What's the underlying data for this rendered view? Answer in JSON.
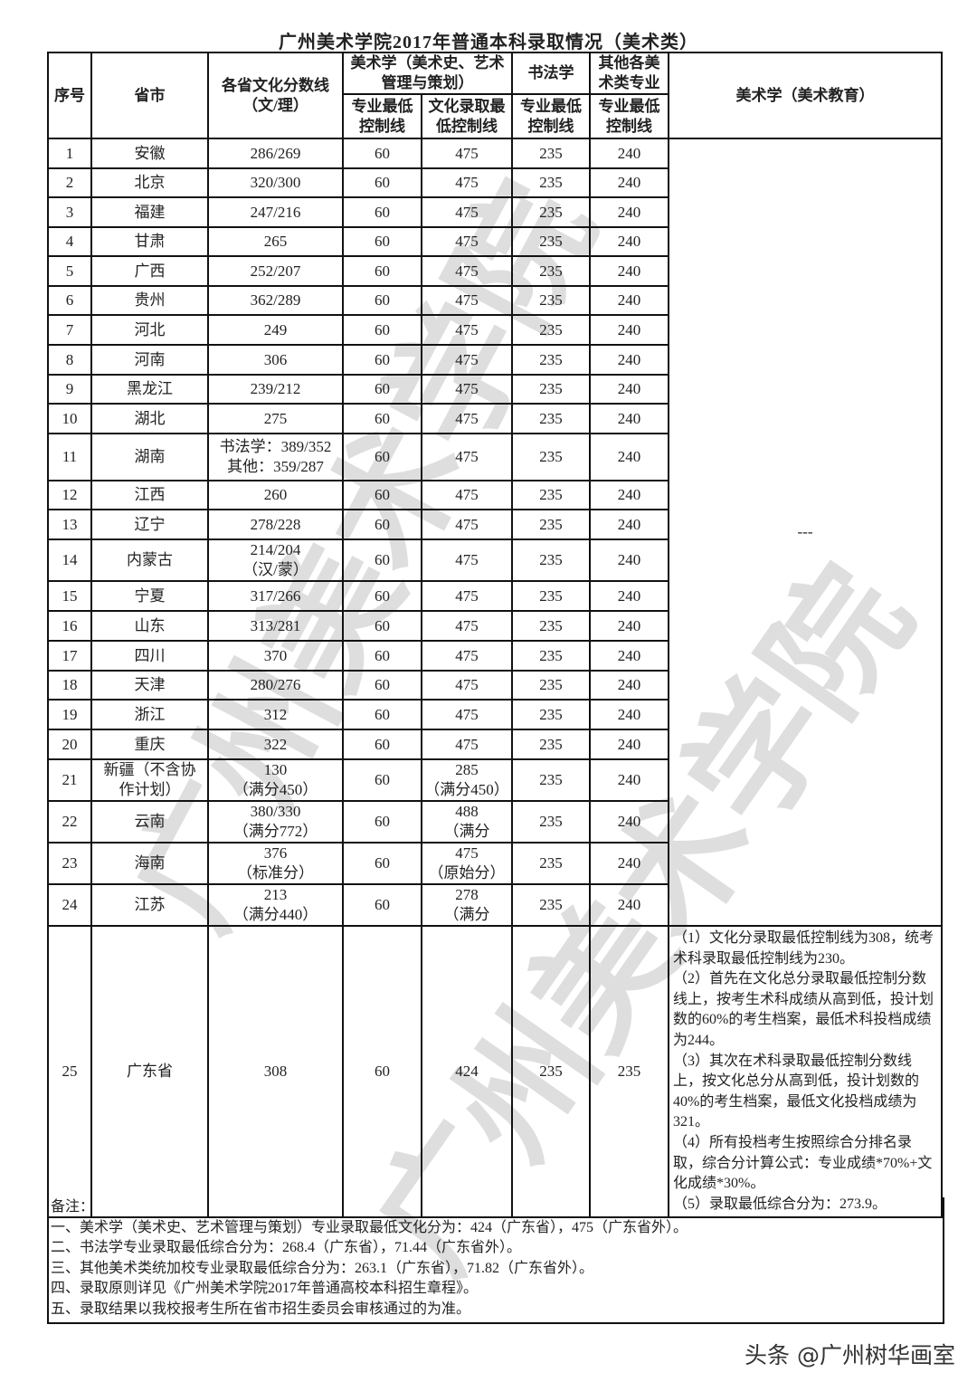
{
  "title": "广州美术学院2017年普通本科录取情况（美术类）",
  "header": {
    "no": "序号",
    "province": "省市",
    "culture": "各省文化分数线\n（文/理）",
    "meishu_group": "美术学（美术史、艺术管理与策划）",
    "meishu_zy": "专业最低\n控制线",
    "meishu_wh": "文化录取最\n低控制线",
    "shufa_group": "书法学",
    "shufa_zy": "专业最低\n控制线",
    "other_group": "其他各美\n术类专业",
    "other_zy": "专业最低\n控制线",
    "edu": "美术学（美术教育）"
  },
  "rows": [
    {
      "no": "1",
      "province": "安徽",
      "culture": "286/269",
      "ms_zy": "60",
      "ms_wh": "475",
      "sf": "235",
      "qt": "240"
    },
    {
      "no": "2",
      "province": "北京",
      "culture": "320/300",
      "ms_zy": "60",
      "ms_wh": "475",
      "sf": "235",
      "qt": "240"
    },
    {
      "no": "3",
      "province": "福建",
      "culture": "247/216",
      "ms_zy": "60",
      "ms_wh": "475",
      "sf": "235",
      "qt": "240"
    },
    {
      "no": "4",
      "province": "甘肃",
      "culture": "265",
      "ms_zy": "60",
      "ms_wh": "475",
      "sf": "235",
      "qt": "240"
    },
    {
      "no": "5",
      "province": "广西",
      "culture": "252/207",
      "ms_zy": "60",
      "ms_wh": "475",
      "sf": "235",
      "qt": "240"
    },
    {
      "no": "6",
      "province": "贵州",
      "culture": "362/289",
      "ms_zy": "60",
      "ms_wh": "475",
      "sf": "235",
      "qt": "240"
    },
    {
      "no": "7",
      "province": "河北",
      "culture": "249",
      "ms_zy": "60",
      "ms_wh": "475",
      "sf": "235",
      "qt": "240"
    },
    {
      "no": "8",
      "province": "河南",
      "culture": "306",
      "ms_zy": "60",
      "ms_wh": "475",
      "sf": "235",
      "qt": "240"
    },
    {
      "no": "9",
      "province": "黑龙江",
      "culture": "239/212",
      "ms_zy": "60",
      "ms_wh": "475",
      "sf": "235",
      "qt": "240"
    },
    {
      "no": "10",
      "province": "湖北",
      "culture": "275",
      "ms_zy": "60",
      "ms_wh": "475",
      "sf": "235",
      "qt": "240"
    },
    {
      "no": "11",
      "province": "湖南",
      "culture": "书法学：389/352\n其他：359/287",
      "ms_zy": "60",
      "ms_wh": "475",
      "sf": "235",
      "qt": "240"
    },
    {
      "no": "12",
      "province": "江西",
      "culture": "260",
      "ms_zy": "60",
      "ms_wh": "475",
      "sf": "235",
      "qt": "240"
    },
    {
      "no": "13",
      "province": "辽宁",
      "culture": "278/228",
      "ms_zy": "60",
      "ms_wh": "475",
      "sf": "235",
      "qt": "240"
    },
    {
      "no": "14",
      "province": "内蒙古",
      "culture": "214/204\n（汉/蒙）",
      "ms_zy": "60",
      "ms_wh": "475",
      "sf": "235",
      "qt": "240"
    },
    {
      "no": "15",
      "province": "宁夏",
      "culture": "317/266",
      "ms_zy": "60",
      "ms_wh": "475",
      "sf": "235",
      "qt": "240"
    },
    {
      "no": "16",
      "province": "山东",
      "culture": "313/281",
      "ms_zy": "60",
      "ms_wh": "475",
      "sf": "235",
      "qt": "240"
    },
    {
      "no": "17",
      "province": "四川",
      "culture": "370",
      "ms_zy": "60",
      "ms_wh": "475",
      "sf": "235",
      "qt": "240"
    },
    {
      "no": "18",
      "province": "天津",
      "culture": "280/276",
      "ms_zy": "60",
      "ms_wh": "475",
      "sf": "235",
      "qt": "240"
    },
    {
      "no": "19",
      "province": "浙江",
      "culture": "312",
      "ms_zy": "60",
      "ms_wh": "475",
      "sf": "235",
      "qt": "240"
    },
    {
      "no": "20",
      "province": "重庆",
      "culture": "322",
      "ms_zy": "60",
      "ms_wh": "475",
      "sf": "235",
      "qt": "240"
    },
    {
      "no": "21",
      "province": "新疆（不含协\n作计划）",
      "culture": "130\n（满分450）",
      "ms_zy": "60",
      "ms_wh": "285\n（满分450）",
      "sf": "235",
      "qt": "240"
    },
    {
      "no": "22",
      "province": "云南",
      "culture": "380/330\n（满分772）",
      "ms_zy": "60",
      "ms_wh": "488\n（满分",
      "sf": "235",
      "qt": "240"
    },
    {
      "no": "23",
      "province": "海南",
      "culture": "376\n（标准分）",
      "ms_zy": "60",
      "ms_wh": "475\n（原始分）",
      "sf": "235",
      "qt": "240"
    },
    {
      "no": "24",
      "province": "江苏",
      "culture": "213\n（满分440）",
      "ms_zy": "60",
      "ms_wh": "278\n（满分",
      "sf": "235",
      "qt": "240"
    },
    {
      "no": "25",
      "province": "广东省",
      "culture": "308",
      "ms_zy": "60",
      "ms_wh": "424",
      "sf": "235",
      "qt": "235"
    }
  ],
  "edu_placeholder": "---",
  "guangdong_edu_note": "（1）文化分录取最低控制线为308，统考术科录取最低控制线为230。\n（2）首先在文化总分录取最低控制分数线上，按考生术科成绩从高到低，投计划数的60%的考生档案，最低术科投档成绩为244。\n（3）其次在术科录取最低控制分数线上，按文化总分从高到低，投计划数的40%的考生档案，最低文化投档成绩为321。\n（4）所有投档考生按照综合分排名录取，综合分计算公式：专业成绩*70%+文化成绩*30%。\n（5）录取最低综合分为：273.9。",
  "notes": {
    "label": "备注：",
    "items": [
      "一、美术学（美术史、艺术管理与策划）专业录取最低文化分为：424（广东省），475（广东省外）。",
      "二、书法学专业录取最低综合分为：268.4（广东省），71.44（广东省外）。",
      "三、其他美术类统加校专业录取最低综合分为：263.1（广东省），71.82（广东省外）。",
      "四、录取原则详见《广州美术学院2017年普通高校本科招生章程》。",
      "五、录取结果以我校报考生所在省市招生委员会审核通过的为准。"
    ]
  },
  "watermark": "广州美术学院",
  "footer": "头条 @广州树华画室"
}
